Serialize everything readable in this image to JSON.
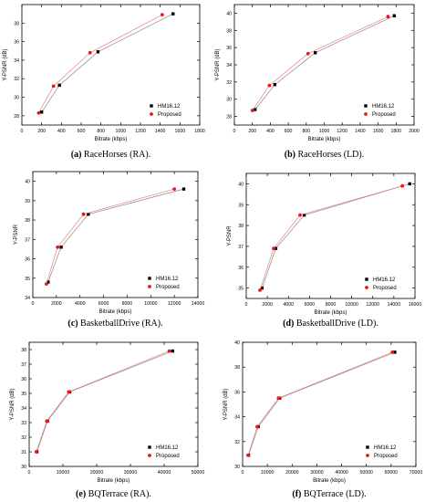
{
  "colors": {
    "hm": "#000000",
    "proposed": "#e3191c",
    "line_hm": "#8a8a8a",
    "line_proposed": "#f08080"
  },
  "chart_data": [
    {
      "type": "line",
      "caption_label": "(a)",
      "caption_text": " RaceHorses (RA).",
      "xlabel": "Bitrate (kbps)",
      "ylabel": "Y-PSNR (dB)",
      "xlim": [
        0,
        1800
      ],
      "ylim": [
        27,
        40
      ],
      "xticks": [
        "0",
        "200",
        "400",
        "600",
        "800",
        "1000",
        "1200",
        "1400",
        "1600",
        "1800"
      ],
      "yticks": [
        "28",
        "30",
        "32",
        "34",
        "36",
        "38"
      ],
      "legend": "bottom-right",
      "series": [
        {
          "name": "HM16.12",
          "marker": "square",
          "x": [
            200,
            380,
            770,
            1530
          ],
          "y": [
            28.4,
            31.3,
            34.9,
            39.0
          ]
        },
        {
          "name": "Proposed",
          "marker": "circle",
          "x": [
            170,
            320,
            690,
            1420
          ],
          "y": [
            28.3,
            31.2,
            34.8,
            38.9
          ]
        }
      ]
    },
    {
      "type": "line",
      "caption_label": "(b)",
      "caption_text": " RaceHorses (LD).",
      "xlabel": "Bitrate (kbps)",
      "ylabel": "Y-PSNR (dB)",
      "xlim": [
        0,
        2000
      ],
      "ylim": [
        27,
        41
      ],
      "xticks": [
        "0",
        "200",
        "400",
        "600",
        "800",
        "1000",
        "1200",
        "1400",
        "1600",
        "1800",
        "2000"
      ],
      "yticks": [
        "28",
        "30",
        "32",
        "34",
        "36",
        "38",
        "40"
      ],
      "legend": "bottom-right",
      "series": [
        {
          "name": "HM16.12",
          "marker": "square",
          "x": [
            230,
            450,
            900,
            1780
          ],
          "y": [
            28.8,
            31.7,
            35.4,
            39.7
          ]
        },
        {
          "name": "Proposed",
          "marker": "circle",
          "x": [
            200,
            390,
            820,
            1710
          ],
          "y": [
            28.7,
            31.6,
            35.3,
            39.6
          ]
        }
      ]
    },
    {
      "type": "line",
      "caption_label": "(c)",
      "caption_text": " BasketballDrive (RA).",
      "xlabel": "Bitrate (kbps)",
      "ylabel": "Y-PSNR",
      "xlim": [
        0,
        14000
      ],
      "ylim": [
        34,
        40.5
      ],
      "xticks": [
        "0",
        "2000",
        "4000",
        "6000",
        "8000",
        "10000",
        "12000",
        "14000"
      ],
      "yticks": [
        "34",
        "35",
        "36",
        "37",
        "38",
        "39",
        "40"
      ],
      "legend": "bottom-right",
      "series": [
        {
          "name": "HM16.12",
          "marker": "square",
          "x": [
            1300,
            2400,
            4700,
            12800
          ],
          "y": [
            34.8,
            36.6,
            38.3,
            39.6
          ]
        },
        {
          "name": "Proposed",
          "marker": "circle",
          "x": [
            1150,
            2100,
            4300,
            12000
          ],
          "y": [
            34.7,
            36.6,
            38.3,
            39.6
          ]
        }
      ]
    },
    {
      "type": "line",
      "caption_label": "(d)",
      "caption_text": " BasketballDrive (LD).",
      "xlabel": "Bitrate (kbps)",
      "ylabel": "Y-PSNR",
      "xlim": [
        0,
        16000
      ],
      "ylim": [
        34.5,
        40.5
      ],
      "xticks": [
        "0",
        "2000",
        "4000",
        "6000",
        "8000",
        "10000",
        "12000",
        "14000",
        "16000"
      ],
      "yticks": [
        "35",
        "36",
        "37",
        "38",
        "39",
        "40"
      ],
      "legend": "bottom-right",
      "series": [
        {
          "name": "HM16.12",
          "marker": "square",
          "x": [
            1500,
            2800,
            5500,
            15500
          ],
          "y": [
            35.0,
            36.9,
            38.5,
            40.0
          ]
        },
        {
          "name": "Proposed",
          "marker": "circle",
          "x": [
            1300,
            2600,
            5100,
            14800
          ],
          "y": [
            34.9,
            36.9,
            38.5,
            39.9
          ]
        }
      ]
    },
    {
      "type": "line",
      "caption_label": "(e)",
      "caption_text": " BQTerrace (RA).",
      "xlabel": "Bitrate (kbps)",
      "ylabel": "Y-PSNR (dB)",
      "xlim": [
        0,
        50000
      ],
      "ylim": [
        30,
        38.5
      ],
      "xticks": [
        "0",
        "10000",
        "20000",
        "30000",
        "40000",
        "50000"
      ],
      "yticks": [
        "30",
        "31",
        "32",
        "33",
        "34",
        "35",
        "36",
        "37",
        "38"
      ],
      "legend": "bottom-right",
      "series": [
        {
          "name": "HM16.12",
          "marker": "square",
          "x": [
            2300,
            5400,
            12000,
            42500
          ],
          "y": [
            31.0,
            33.1,
            35.1,
            37.9
          ]
        },
        {
          "name": "Proposed",
          "marker": "circle",
          "x": [
            2100,
            5200,
            11700,
            41500
          ],
          "y": [
            31.0,
            33.1,
            35.1,
            37.9
          ]
        }
      ]
    },
    {
      "type": "line",
      "caption_label": "(f)",
      "caption_text": " BQTerrace (LD).",
      "xlabel": "Bitrate (kbps)",
      "ylabel": "Y-PSNR (dB)",
      "xlim": [
        0,
        70000
      ],
      "ylim": [
        30,
        40
      ],
      "xticks": [
        "0",
        "10000",
        "20000",
        "30000",
        "40000",
        "50000",
        "60000",
        "70000"
      ],
      "yticks": [
        "30",
        "32",
        "34",
        "36",
        "38",
        "40"
      ],
      "legend": "bottom-right",
      "series": [
        {
          "name": "HM16.12",
          "marker": "square",
          "x": [
            2400,
            6300,
            15000,
            61500
          ],
          "y": [
            30.9,
            33.2,
            35.5,
            39.2
          ]
        },
        {
          "name": "Proposed",
          "marker": "circle",
          "x": [
            2200,
            5900,
            14500,
            60500
          ],
          "y": [
            30.9,
            33.2,
            35.5,
            39.2
          ]
        }
      ]
    }
  ]
}
